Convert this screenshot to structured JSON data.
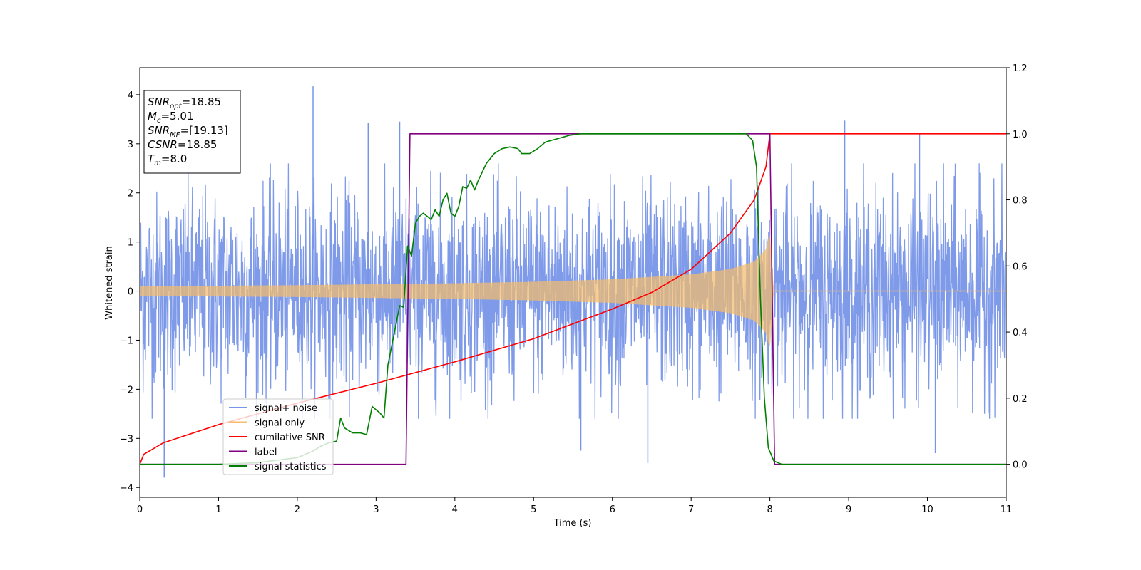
{
  "chart_data": {
    "type": "line",
    "title": "",
    "xlabel": "Time (s)",
    "ylabel": "Whitened strain",
    "y2label": "",
    "xlim": [
      0,
      11
    ],
    "ylim": [
      -4.2,
      4.55
    ],
    "y2lim": [
      -0.1,
      1.2
    ],
    "xticks": [
      "0",
      "1",
      "2",
      "3",
      "4",
      "5",
      "6",
      "7",
      "8",
      "9",
      "10",
      "11"
    ],
    "yticks": [
      "−4",
      "−3",
      "−2",
      "−1",
      "0",
      "1",
      "2",
      "3",
      "4"
    ],
    "y2ticks": [
      "0.0",
      "0.2",
      "0.4",
      "0.6",
      "0.8",
      "1.0",
      "1.2"
    ],
    "grid": false,
    "legend_position": "lower-left",
    "annotation": [
      {
        "base": "SNR",
        "sub": "opt",
        "value": "=18.85"
      },
      {
        "base": "M",
        "sub": "c",
        "value": "=5.01"
      },
      {
        "base": "SNR",
        "sub": "MF",
        "value": "=[19.13]"
      },
      {
        "base": "CSNR",
        "sub": "",
        "value": "=18.85"
      },
      {
        "base": "T",
        "sub": "m",
        "value": "=8.0"
      }
    ],
    "series": [
      {
        "name": "signal+ noise",
        "axis": "left",
        "color": "#7795e8",
        "description": "noisy whitened strain, roughly within ±2.5 with spikes to ±4.2",
        "x": [
          0,
          0.31,
          2.2,
          2.9,
          3.3,
          5.6,
          6.45,
          8.95,
          9.9,
          10.1
        ],
        "y": [
          0,
          -3.8,
          4.17,
          3.42,
          3.45,
          -3.25,
          -3.5,
          3.47,
          3.2,
          -3.3
        ]
      },
      {
        "name": "signal only",
        "axis": "left",
        "color": "#f4bc6c",
        "x": [
          0,
          1,
          2,
          3,
          4,
          5,
          6,
          7,
          7.5,
          7.8,
          7.95,
          8.0,
          8.05,
          11
        ],
        "amplitude": [
          0.1,
          0.11,
          0.12,
          0.14,
          0.16,
          0.19,
          0.24,
          0.34,
          0.45,
          0.6,
          0.85,
          1.2,
          0.0,
          0.0
        ]
      },
      {
        "name": "cumilative SNR",
        "axis": "right",
        "color": "#ff0000",
        "x": [
          0,
          0.05,
          0.3,
          1,
          2,
          3,
          4,
          5,
          6,
          6.5,
          7,
          7.5,
          7.8,
          7.95,
          8.0,
          11
        ],
        "y": [
          0.0,
          0.03,
          0.065,
          0.12,
          0.185,
          0.245,
          0.31,
          0.38,
          0.47,
          0.52,
          0.59,
          0.7,
          0.8,
          0.9,
          1.0,
          1.0
        ]
      },
      {
        "name": "label",
        "axis": "right",
        "color": "#800080",
        "x": [
          0,
          3.38,
          3.43,
          8.0,
          8.06,
          11
        ],
        "y": [
          0.0,
          0.0,
          1.0,
          1.0,
          0.0,
          0.0
        ]
      },
      {
        "name": "signal statistics",
        "axis": "right",
        "color": "#008000",
        "x": [
          0,
          1.0,
          1.5,
          2.0,
          2.2,
          2.3,
          2.4,
          2.5,
          2.55,
          2.6,
          2.7,
          2.8,
          2.88,
          2.95,
          3.0,
          3.05,
          3.1,
          3.15,
          3.2,
          3.25,
          3.3,
          3.35,
          3.4,
          3.45,
          3.5,
          3.55,
          3.6,
          3.7,
          3.75,
          3.8,
          3.85,
          3.9,
          3.95,
          4.0,
          4.05,
          4.1,
          4.15,
          4.2,
          4.25,
          4.3,
          4.4,
          4.5,
          4.6,
          4.7,
          4.8,
          4.85,
          4.95,
          5.05,
          5.15,
          5.3,
          5.45,
          5.6,
          5.8,
          6.0,
          7.0,
          7.7,
          7.78,
          7.83,
          7.88,
          7.93,
          7.98,
          8.05,
          8.15,
          11
        ],
        "y": [
          0.0,
          0.0,
          0.005,
          0.02,
          0.04,
          0.055,
          0.065,
          0.07,
          0.14,
          0.11,
          0.095,
          0.095,
          0.09,
          0.175,
          0.165,
          0.155,
          0.14,
          0.3,
          0.36,
          0.42,
          0.48,
          0.475,
          0.66,
          0.63,
          0.73,
          0.75,
          0.76,
          0.74,
          0.77,
          0.75,
          0.8,
          0.82,
          0.76,
          0.75,
          0.78,
          0.84,
          0.835,
          0.86,
          0.83,
          0.86,
          0.91,
          0.94,
          0.955,
          0.96,
          0.955,
          0.94,
          0.94,
          0.955,
          0.975,
          0.985,
          0.995,
          1.0,
          1.0,
          1.0,
          1.0,
          1.0,
          0.98,
          0.9,
          0.5,
          0.2,
          0.05,
          0.01,
          0.0,
          0.0
        ]
      }
    ]
  }
}
